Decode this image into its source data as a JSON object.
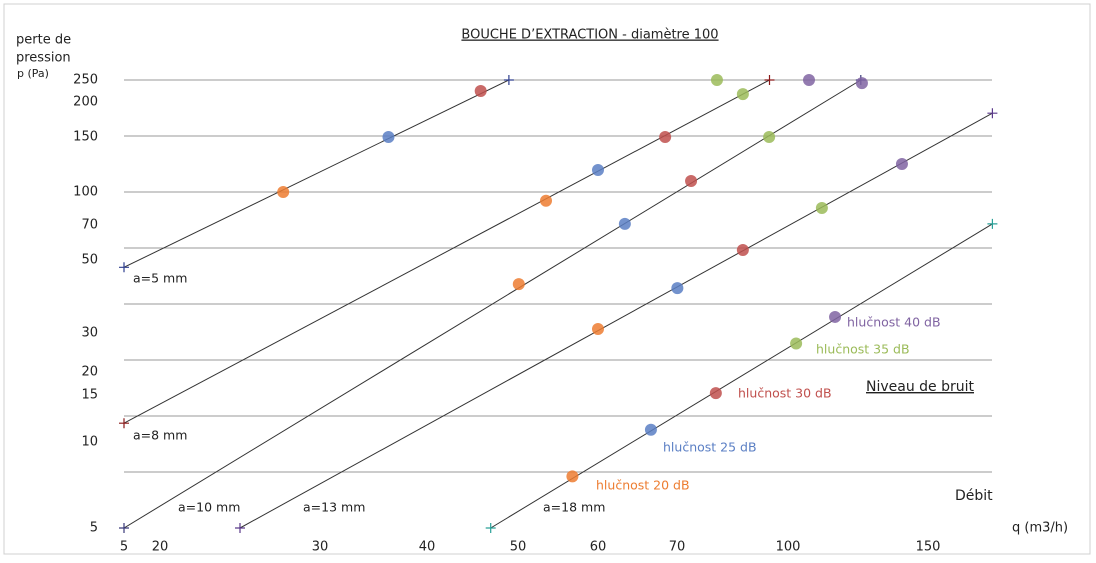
{
  "chart_data": {
    "type": "line",
    "title": "BOUCHE D’EXTRACTION - diamètre 100",
    "y_label": [
      "perte de",
      "pression"
    ],
    "y_unit": "p (Pa)",
    "x_label": "q (m3/h)",
    "annotations": [
      "Niveau de bruit",
      "Débit"
    ],
    "xticks": [
      5,
      20,
      30,
      40,
      50,
      60,
      70,
      100,
      150
    ],
    "yticks": [
      5,
      10,
      15,
      20,
      30,
      50,
      70,
      100,
      150,
      200,
      250
    ],
    "lines": [
      {
        "name": "a=5 mm",
        "color": "#2f3f8f",
        "x": [
          5,
          49
        ],
        "values": [
          48,
          250
        ]
      },
      {
        "name": "a=8 mm",
        "color": "#8b1a1a",
        "x": [
          5,
          95
        ],
        "values": [
          12,
          250
        ]
      },
      {
        "name": "a=10 mm",
        "color": "#3a3a7a",
        "x": [
          5,
          126
        ],
        "values": [
          5,
          250
        ]
      },
      {
        "name": "a=13 mm",
        "color": "#5a3a8a",
        "x": [
          25,
          173
        ],
        "values": [
          5,
          184
        ]
      },
      {
        "name": "a=18 mm",
        "color": "#2aa198",
        "x": [
          47,
          173
        ],
        "values": [
          5,
          71
        ]
      }
    ],
    "series": [
      {
        "name": "hlučnost 20 dB",
        "color": "#ed7d31",
        "x": [
          27.7,
          53.5,
          50.1,
          60,
          56.8
        ],
        "values": [
          100,
          92,
          43.4,
          31.1,
          8
        ]
      },
      {
        "name": "hlučnost 25 dB",
        "color": "#5b7fc4",
        "x": [
          36.4,
          60,
          63.4,
          70.1,
          66.7
        ],
        "values": [
          150,
          120,
          71,
          42.3,
          11.3
        ]
      },
      {
        "name": "hlučnost 30 dB",
        "color": "#c0504d",
        "x": [
          45.9,
          68.5,
          73.8,
          87.8,
          80.5
        ],
        "values": [
          225,
          150,
          110,
          55.7,
          15.4
        ]
      },
      {
        "name": "hlučnost 35 dB",
        "color": "#9bbb59",
        "x": [
          80.8,
          87.8,
          94.9,
          112.1,
          102.9
        ],
        "values": [
          250,
          218,
          150,
          85.5,
          27.3
        ]
      },
      {
        "name": "hlučnost 40 dB",
        "color": "#8064a2",
        "x": [
          107.5,
          126.4,
          140.7,
          116.8
        ],
        "values": [
          250,
          243,
          125.5,
          34.4
        ]
      }
    ]
  }
}
